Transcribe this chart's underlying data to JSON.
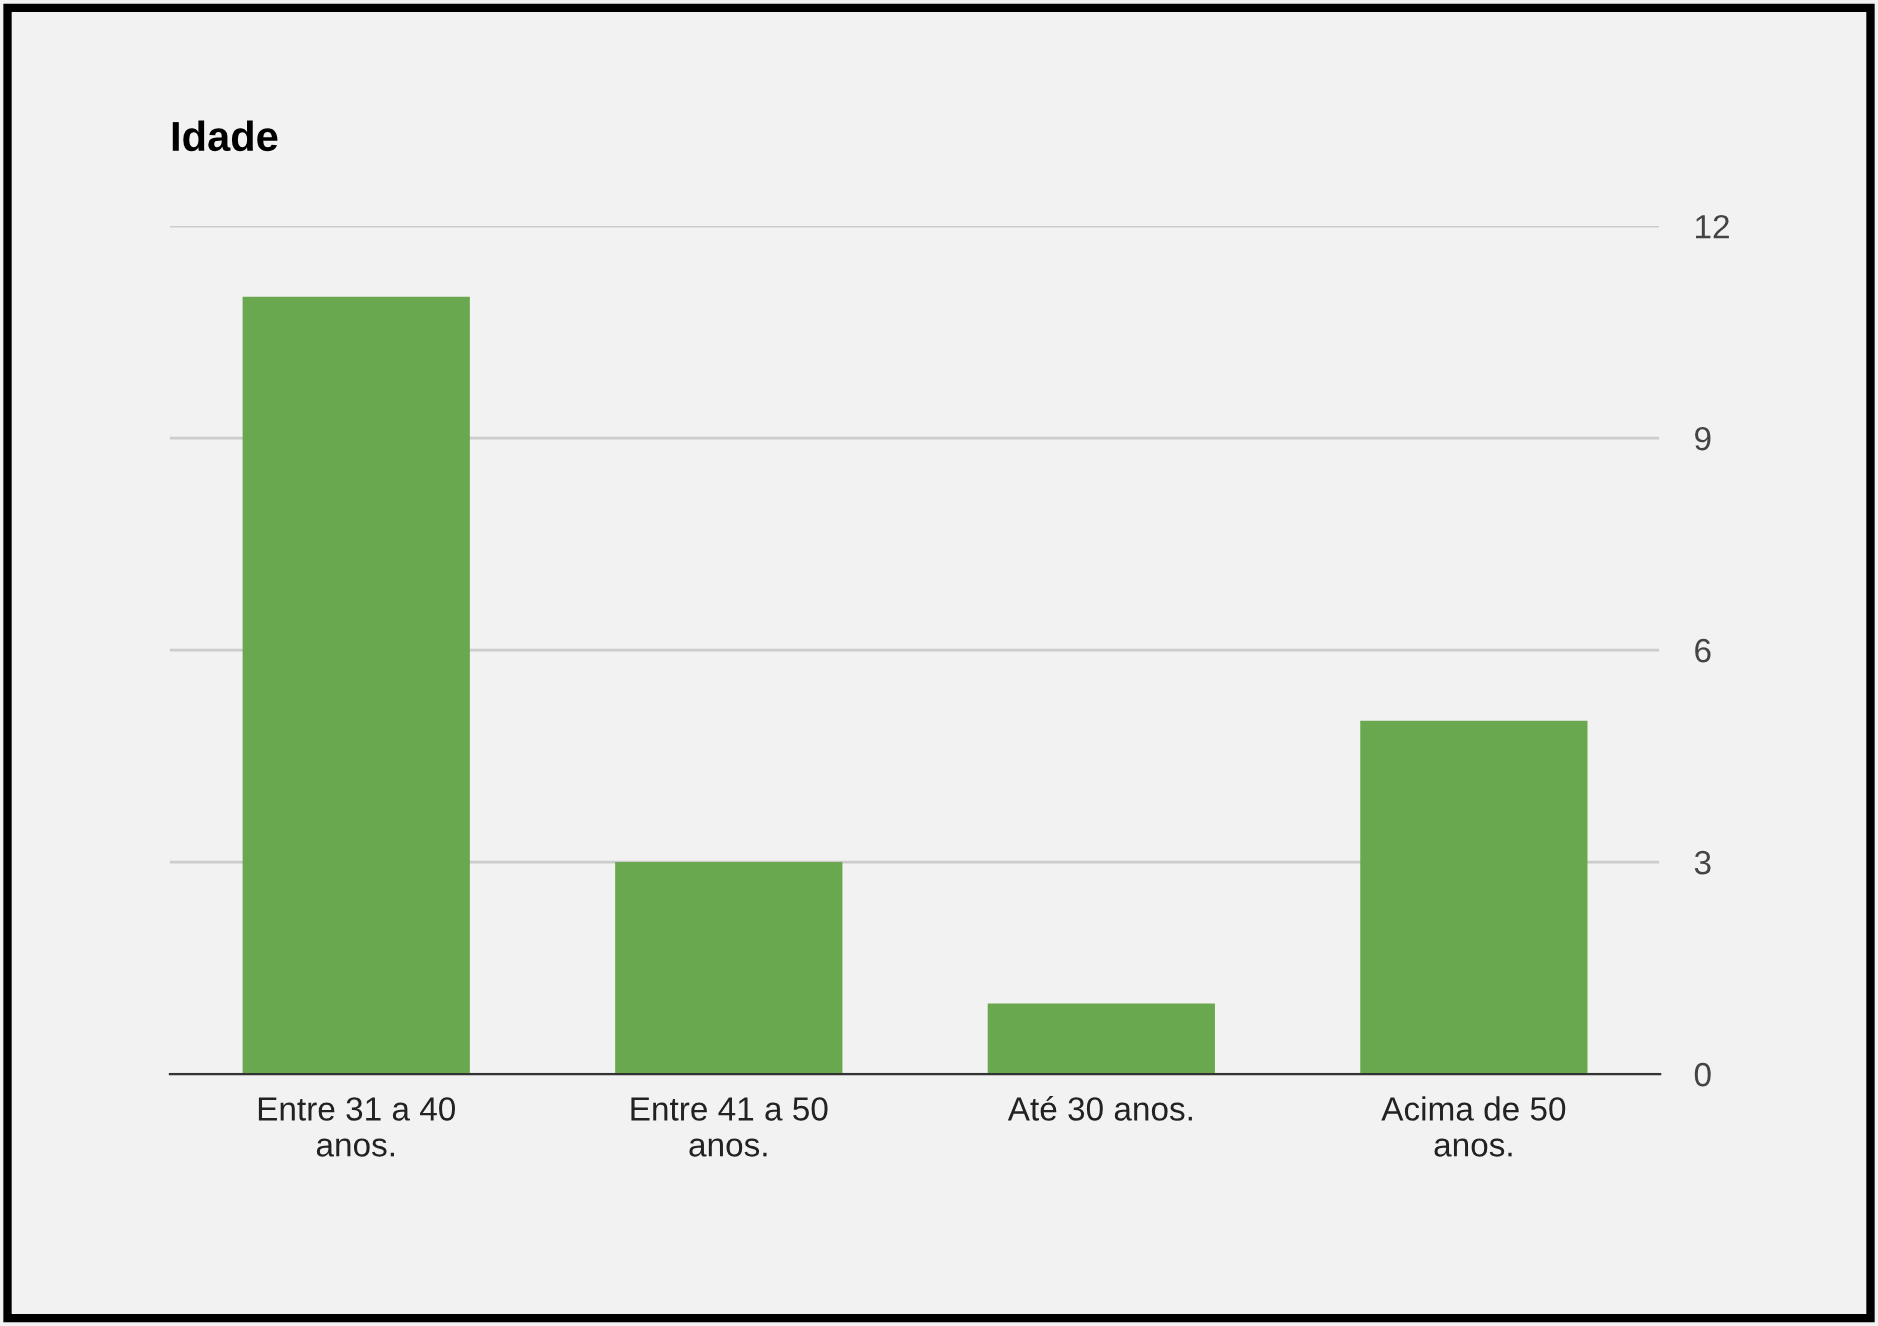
{
  "chart_data": {
    "type": "bar",
    "title": "Idade",
    "categories": [
      "Entre 31 a 40 anos.",
      "Entre 41 a 50 anos.",
      "Até 30 anos.",
      "Acima de 50 anos."
    ],
    "values": [
      11,
      3,
      1,
      5
    ],
    "color": "#6aa84f",
    "ylim": [
      0,
      12
    ],
    "yticks": [
      0,
      3,
      6,
      9,
      12
    ],
    "grid": "y",
    "legend": false
  }
}
